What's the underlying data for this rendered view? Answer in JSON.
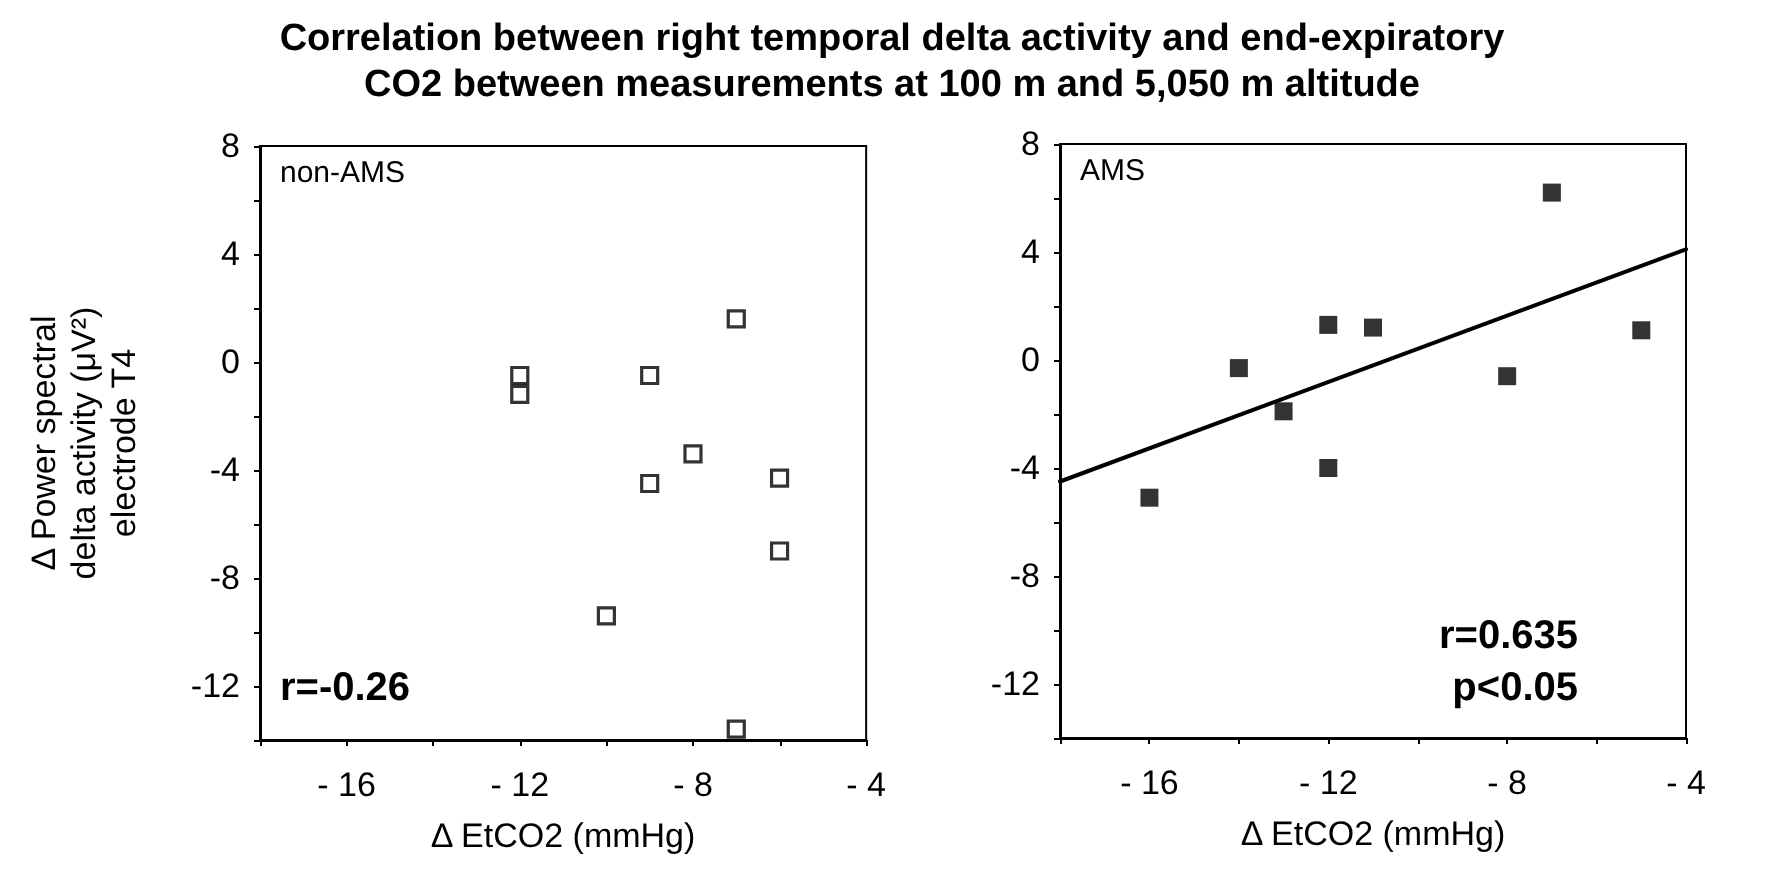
{
  "chart_data": [
    {
      "type": "scatter",
      "title": "Correlation between right temporal delta activity and end-expiratory\nCO2 between measurements at 100 m and 5,050 m altitude",
      "xlabel": "Δ EtCO2 (mmHg)",
      "ylabel": "Δ Power spectral\ndelta activity (μV²)\nelectrode T4",
      "annotations": [
        "non-AMS",
        "r=-0.26"
      ],
      "series": [
        {
          "color": "#000000",
          "x": [
            -12,
            -12,
            -9,
            -9,
            -8,
            -7,
            -6,
            -6,
            -10,
            -7
          ],
          "values": [
            -0.5,
            -1.2,
            -0.5,
            -4.5,
            -3.4,
            1.6,
            -4.3,
            -7.0,
            -9.4,
            -13.6
          ]
        }
      ],
      "marker": "square",
      "xlim": [
        -18,
        -4
      ],
      "xticks": [
        {
          "value": -18,
          "label": null
        },
        {
          "value": -16,
          "label": "- 16"
        },
        {
          "value": -14,
          "label": null
        },
        {
          "value": -12,
          "label": "- 12"
        },
        {
          "value": -10,
          "label": null
        },
        {
          "value": -8,
          "label": "- 8"
        },
        {
          "value": -6,
          "label": null
        },
        {
          "value": -4,
          "label": "- 4"
        }
      ],
      "ylim": [
        -14,
        8
      ],
      "yticks": [
        {
          "value": -14,
          "label": null
        },
        -12,
        {
          "value": -10,
          "label": null
        },
        -8,
        {
          "value": -6,
          "label": null
        },
        -4,
        {
          "value": -2,
          "label": null
        },
        0,
        {
          "value": 2,
          "label": null
        },
        4,
        {
          "value": 6,
          "label": null
        },
        8
      ]
    },
    {
      "type": "scatter",
      "xlabel": "Δ EtCO2 (mmHg)",
      "annotations": [
        "AMS",
        "r=0.635",
        "p<0.05"
      ],
      "series": [
        {
          "color": "#000000",
          "marker": "square",
          "x": [
            -7,
            -5,
            -11,
            -12,
            -14,
            -13,
            -12,
            -8,
            -16
          ],
          "values": [
            6.2,
            1.1,
            1.2,
            1.3,
            -0.3,
            -1.9,
            -4.0,
            -0.6,
            -5.1
          ]
        },
        {
          "type": "line",
          "color": "#000000",
          "marker": "none",
          "x": [
            -18,
            -4
          ],
          "values": [
            -4.5,
            4.1
          ],
          "line_style": "solid"
        }
      ],
      "xlim": [
        -18,
        -4
      ],
      "xticks": [
        {
          "value": -18,
          "label": null
        },
        {
          "value": -16,
          "label": "- 16"
        },
        {
          "value": -14,
          "label": null
        },
        {
          "value": -12,
          "label": "- 12"
        },
        {
          "value": -10,
          "label": null
        },
        {
          "value": -8,
          "label": "- 8"
        },
        {
          "value": -6,
          "label": null
        },
        {
          "value": -4,
          "label": "- 4"
        }
      ],
      "ylim": [
        -14,
        8
      ],
      "yticks": [
        {
          "value": -14,
          "label": null
        },
        -12,
        {
          "value": -10,
          "label": null
        },
        -8,
        {
          "value": -6,
          "label": null
        },
        -4,
        {
          "value": -2,
          "label": null
        },
        0,
        {
          "value": 2,
          "label": null
        },
        4,
        {
          "value": 6,
          "label": null
        },
        8
      ]
    }
  ]
}
